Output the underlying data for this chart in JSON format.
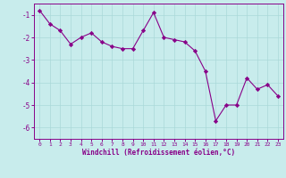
{
  "x": [
    0,
    1,
    2,
    3,
    4,
    5,
    6,
    7,
    8,
    9,
    10,
    11,
    12,
    13,
    14,
    15,
    16,
    17,
    18,
    19,
    20,
    21,
    22,
    23
  ],
  "y": [
    -0.8,
    -1.4,
    -1.7,
    -2.3,
    -2.0,
    -1.8,
    -2.2,
    -2.4,
    -2.5,
    -2.5,
    -1.7,
    -0.9,
    -2.0,
    -2.1,
    -2.2,
    -2.6,
    -3.5,
    -5.7,
    -5.0,
    -5.0,
    -3.8,
    -4.3,
    -4.1,
    -4.6
  ],
  "line_color": "#880088",
  "marker": "D",
  "bg_color": "#c8ecec",
  "grid_color": "#aad8d8",
  "xlabel": "Windchill (Refroidissement éolien,°C)",
  "xlim": [
    -0.5,
    23.5
  ],
  "ylim": [
    -6.5,
    -0.5
  ],
  "yticks": [
    -6,
    -5,
    -4,
    -3,
    -2,
    -1
  ],
  "xticks": [
    0,
    1,
    2,
    3,
    4,
    5,
    6,
    7,
    8,
    9,
    10,
    11,
    12,
    13,
    14,
    15,
    16,
    17,
    18,
    19,
    20,
    21,
    22,
    23
  ],
  "title_color": "#880088",
  "axis_color": "#880088",
  "tick_color": "#880088"
}
